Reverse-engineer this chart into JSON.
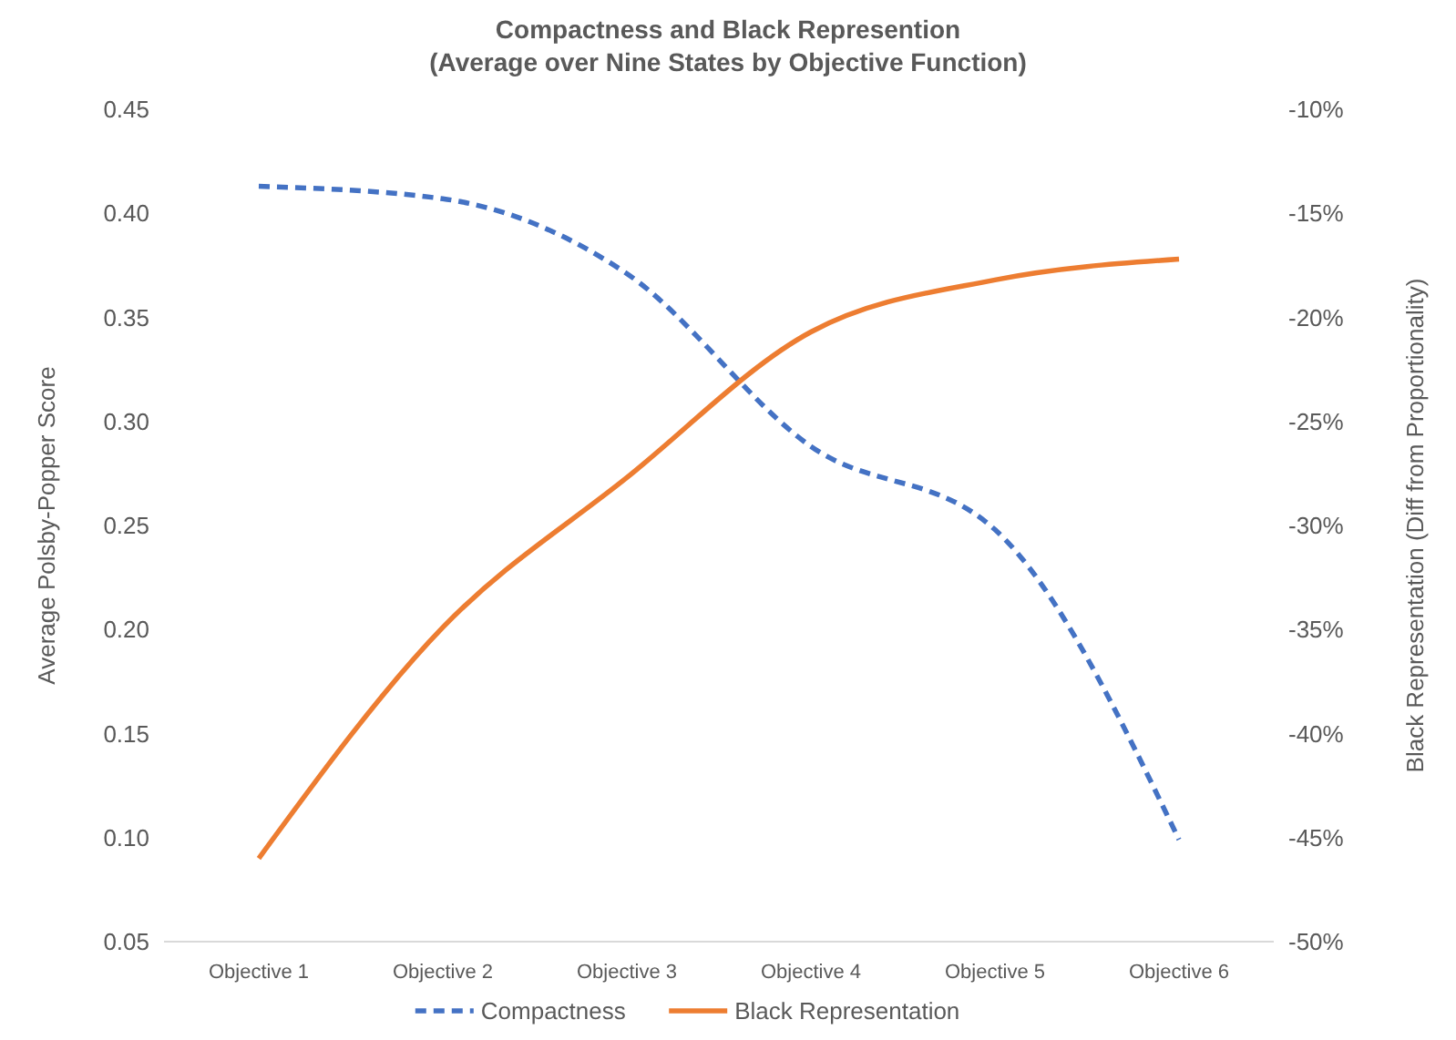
{
  "chart_data": {
    "type": "line",
    "title": "Compactness and Black Represention\n(Average over Nine States by Objective Function)",
    "ylabel": "Average Polsby-Popper Score",
    "y2label": "Black Representation (Diff from Proportionality)",
    "categories": [
      "Objective 1",
      "Objective 2",
      "Objective 3",
      "Objective 4",
      "Objective 5",
      "Objective 6"
    ],
    "series": [
      {
        "name": "Compactness",
        "color": "#4472c4",
        "line_style": "dashed",
        "values": [
          0.413,
          0.407,
          0.371,
          0.288,
          0.248,
          0.099
        ]
      },
      {
        "name": "Black Representation",
        "color": "#ed7d31",
        "line_style": "solid",
        "axis": "y2",
        "values": [
          -46.0,
          -34.9,
          -27.7,
          -20.7,
          -18.2,
          -17.2
        ]
      }
    ],
    "ylim": [
      0.05,
      0.45
    ],
    "yticks": [
      {
        "value": 0.05,
        "label": "0.05"
      },
      {
        "value": 0.1,
        "label": "0.10"
      },
      {
        "value": 0.15,
        "label": "0.15"
      },
      {
        "value": 0.2,
        "label": "0.20"
      },
      {
        "value": 0.25,
        "label": "0.25"
      },
      {
        "value": 0.3,
        "label": "0.30"
      },
      {
        "value": 0.35,
        "label": "0.35"
      },
      {
        "value": 0.4,
        "label": "0.40"
      },
      {
        "value": 0.45,
        "label": "0.45"
      }
    ],
    "y2lim": [
      -50,
      -10
    ],
    "y2ticks": [
      {
        "value": -50,
        "label": "-50%"
      },
      {
        "value": -45,
        "label": "-45%"
      },
      {
        "value": -40,
        "label": "-40%"
      },
      {
        "value": -35,
        "label": "-35%"
      },
      {
        "value": -30,
        "label": "-30%"
      },
      {
        "value": -25,
        "label": "-25%"
      },
      {
        "value": -20,
        "label": "-20%"
      },
      {
        "value": -15,
        "label": "-15%"
      },
      {
        "value": -10,
        "label": "-10%"
      }
    ],
    "legend": "bottom",
    "grid": false,
    "marker": "none"
  }
}
